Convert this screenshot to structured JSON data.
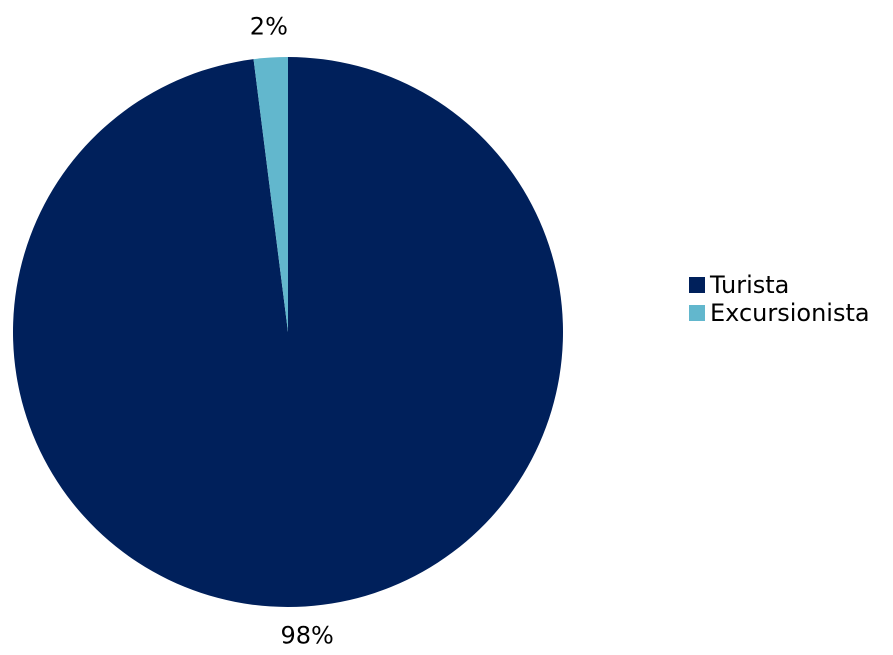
{
  "chart_data": {
    "type": "pie",
    "categories": [
      "Turista",
      "Excursionista"
    ],
    "values": [
      98,
      2
    ],
    "labels": [
      "98%",
      "2%"
    ],
    "colors": [
      "#00205b",
      "#62b7cd"
    ],
    "legend_placement": "right"
  }
}
